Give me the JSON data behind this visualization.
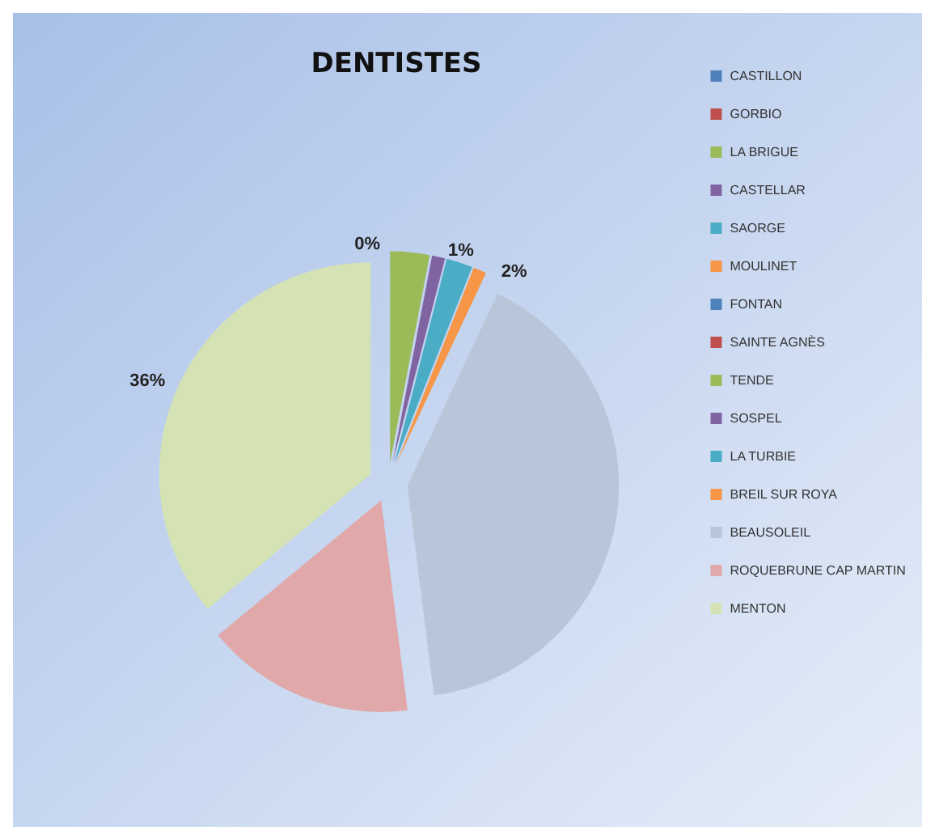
{
  "chart_data": {
    "type": "pie",
    "title": "DENTISTES",
    "categories": [
      "CASTILLON",
      "GORBIO",
      "LA BRIGUE",
      "CASTELLAR",
      "SAORGE",
      "MOULINET",
      "FONTAN",
      "SAINTE AGNÈS",
      "TENDE",
      "SOSPEL",
      "LA TURBIE",
      "BREIL SUR ROYA",
      "BEAUSOLEIL",
      "ROQUEBRUNE CAP MARTIN",
      "MENTON"
    ],
    "values": [
      0,
      0,
      0,
      0,
      0,
      0,
      0,
      0,
      3,
      1,
      2,
      1,
      41,
      16,
      36
    ],
    "value_labels": [
      null,
      null,
      null,
      null,
      null,
      null,
      null,
      "0%",
      null,
      "1%",
      "2%",
      null,
      null,
      null,
      "36%"
    ],
    "colors": [
      "#4f81bd",
      "#c0504d",
      "#9bbb59",
      "#8064a2",
      "#4bacc6",
      "#f79646",
      "#4f81bd",
      "#c0504d",
      "#9bbb59",
      "#8064a2",
      "#4bacc6",
      "#f79646",
      "#b9c6da",
      "#e0a8a8",
      "#d4e2b4"
    ],
    "legend": "right"
  }
}
